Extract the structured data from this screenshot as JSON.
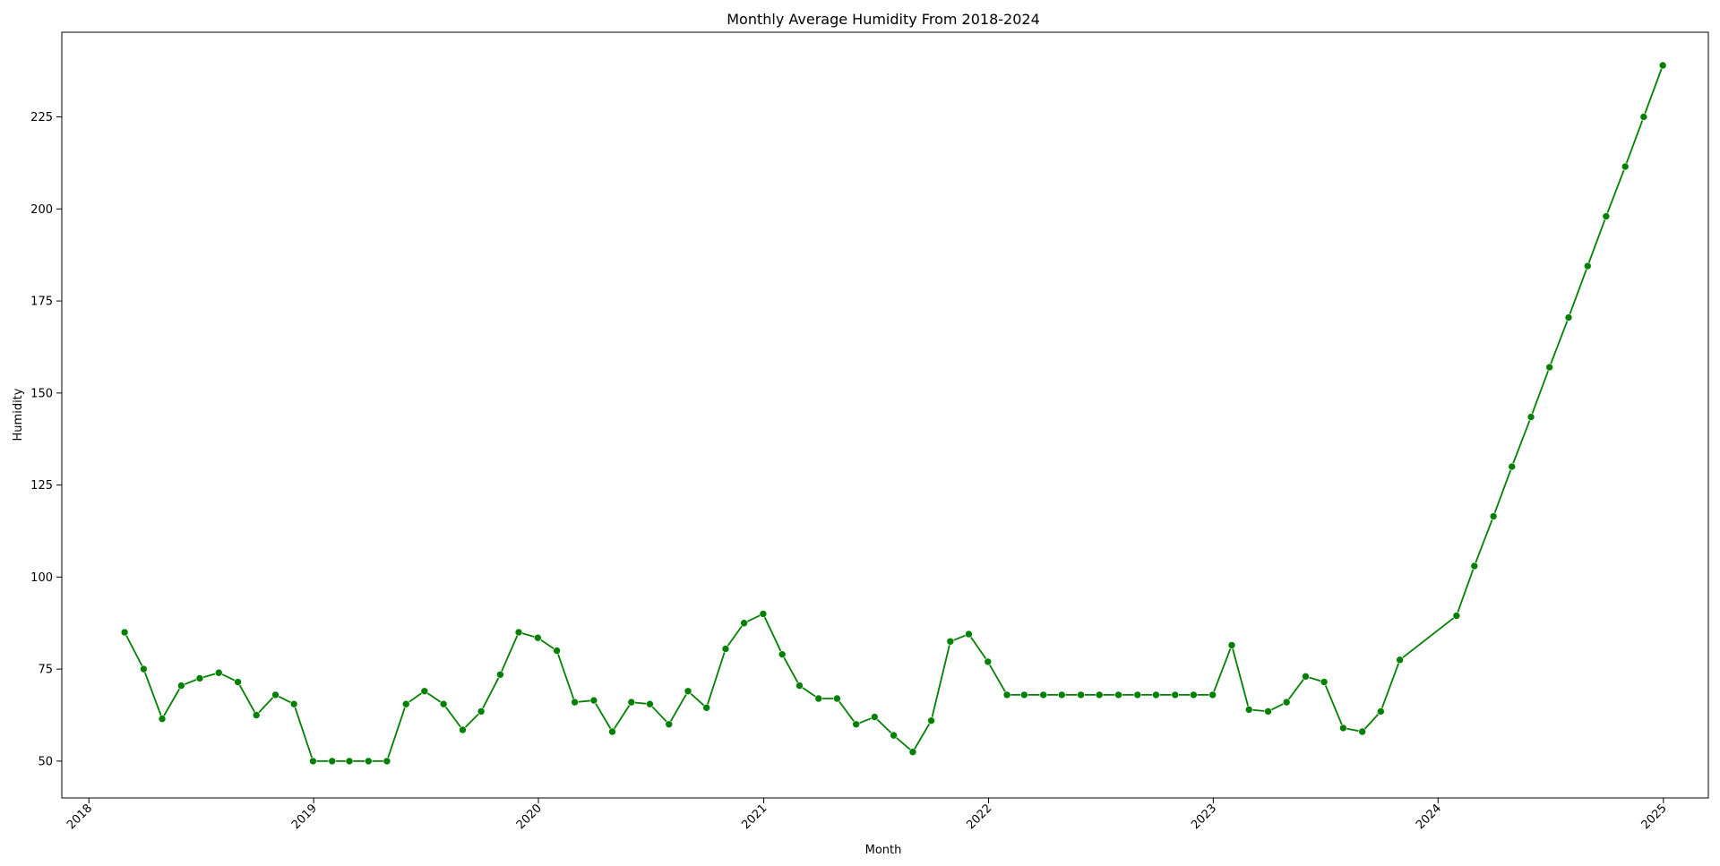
{
  "chart_data": {
    "type": "line",
    "title": "Monthly Average Humidity From 2018-2024",
    "xlabel": "Month",
    "ylabel": "Humidity",
    "xlim": [
      "2017-11-18",
      "2025-03-15"
    ],
    "ylim": [
      40,
      248
    ],
    "x_ticks": [
      "2018",
      "2019",
      "2020",
      "2021",
      "2022",
      "2023",
      "2024",
      "2025"
    ],
    "y_ticks": [
      50,
      75,
      100,
      125,
      150,
      175,
      200,
      225
    ],
    "grid": false,
    "line_color": "#008000",
    "marker": "circle",
    "series": [
      {
        "x": [
          "2018-02-28",
          "2018-03-31",
          "2018-04-30",
          "2018-05-31",
          "2018-06-30",
          "2018-07-31",
          "2018-08-31",
          "2018-09-30",
          "2018-10-31",
          "2018-11-30",
          "2018-12-31",
          "2019-01-31",
          "2019-02-28",
          "2019-03-31",
          "2019-04-30",
          "2019-05-31",
          "2019-06-30",
          "2019-07-31",
          "2019-08-31",
          "2019-09-30",
          "2019-10-31",
          "2019-11-30",
          "2019-12-31",
          "2020-01-31",
          "2020-02-29",
          "2020-03-31",
          "2020-04-30",
          "2020-05-31",
          "2020-06-30",
          "2020-07-31",
          "2020-08-31",
          "2020-09-30",
          "2020-10-31",
          "2020-11-30",
          "2020-12-31",
          "2021-01-31",
          "2021-02-28",
          "2021-03-31",
          "2021-04-30",
          "2021-05-31",
          "2021-06-30",
          "2021-07-31",
          "2021-08-31",
          "2021-09-30",
          "2021-10-31",
          "2021-11-30",
          "2021-12-31",
          "2022-01-31",
          "2022-02-28",
          "2022-03-31",
          "2022-04-30",
          "2022-05-31",
          "2022-06-30",
          "2022-07-31",
          "2022-08-31",
          "2022-09-30",
          "2022-10-31",
          "2022-11-30",
          "2022-12-31",
          "2023-01-31",
          "2023-02-28",
          "2023-03-31",
          "2023-04-30",
          "2023-05-31",
          "2023-06-30",
          "2023-07-31",
          "2023-08-31",
          "2023-09-30",
          "2023-10-31",
          "2024-01-31",
          "2024-02-29",
          "2024-03-31",
          "2024-04-30",
          "2024-05-31",
          "2024-06-30",
          "2024-07-31",
          "2024-08-31",
          "2024-09-30",
          "2024-10-31",
          "2024-11-30",
          "2024-12-31"
        ],
        "values": [
          85,
          75,
          61.5,
          70.5,
          72.5,
          74,
          71.5,
          62.5,
          68,
          65.5,
          50,
          50,
          50,
          50,
          50,
          65.5,
          69,
          65.5,
          58.5,
          63.5,
          73.5,
          85,
          83.5,
          80,
          66,
          66.5,
          58,
          66,
          65.5,
          60,
          69,
          64.5,
          80.5,
          87.5,
          90,
          79,
          70.5,
          67,
          67,
          60,
          62,
          57,
          52.5,
          61,
          82.5,
          84.5,
          77,
          68,
          68,
          68,
          68,
          68,
          68,
          68,
          68,
          68,
          68,
          68,
          68,
          81.5,
          64,
          63.5,
          66,
          73,
          71.5,
          59,
          58,
          63.5,
          77.5,
          89.5,
          103,
          116.5,
          130,
          143.5,
          157,
          170.5,
          184.5,
          198,
          211.5,
          225,
          239
        ]
      }
    ]
  }
}
